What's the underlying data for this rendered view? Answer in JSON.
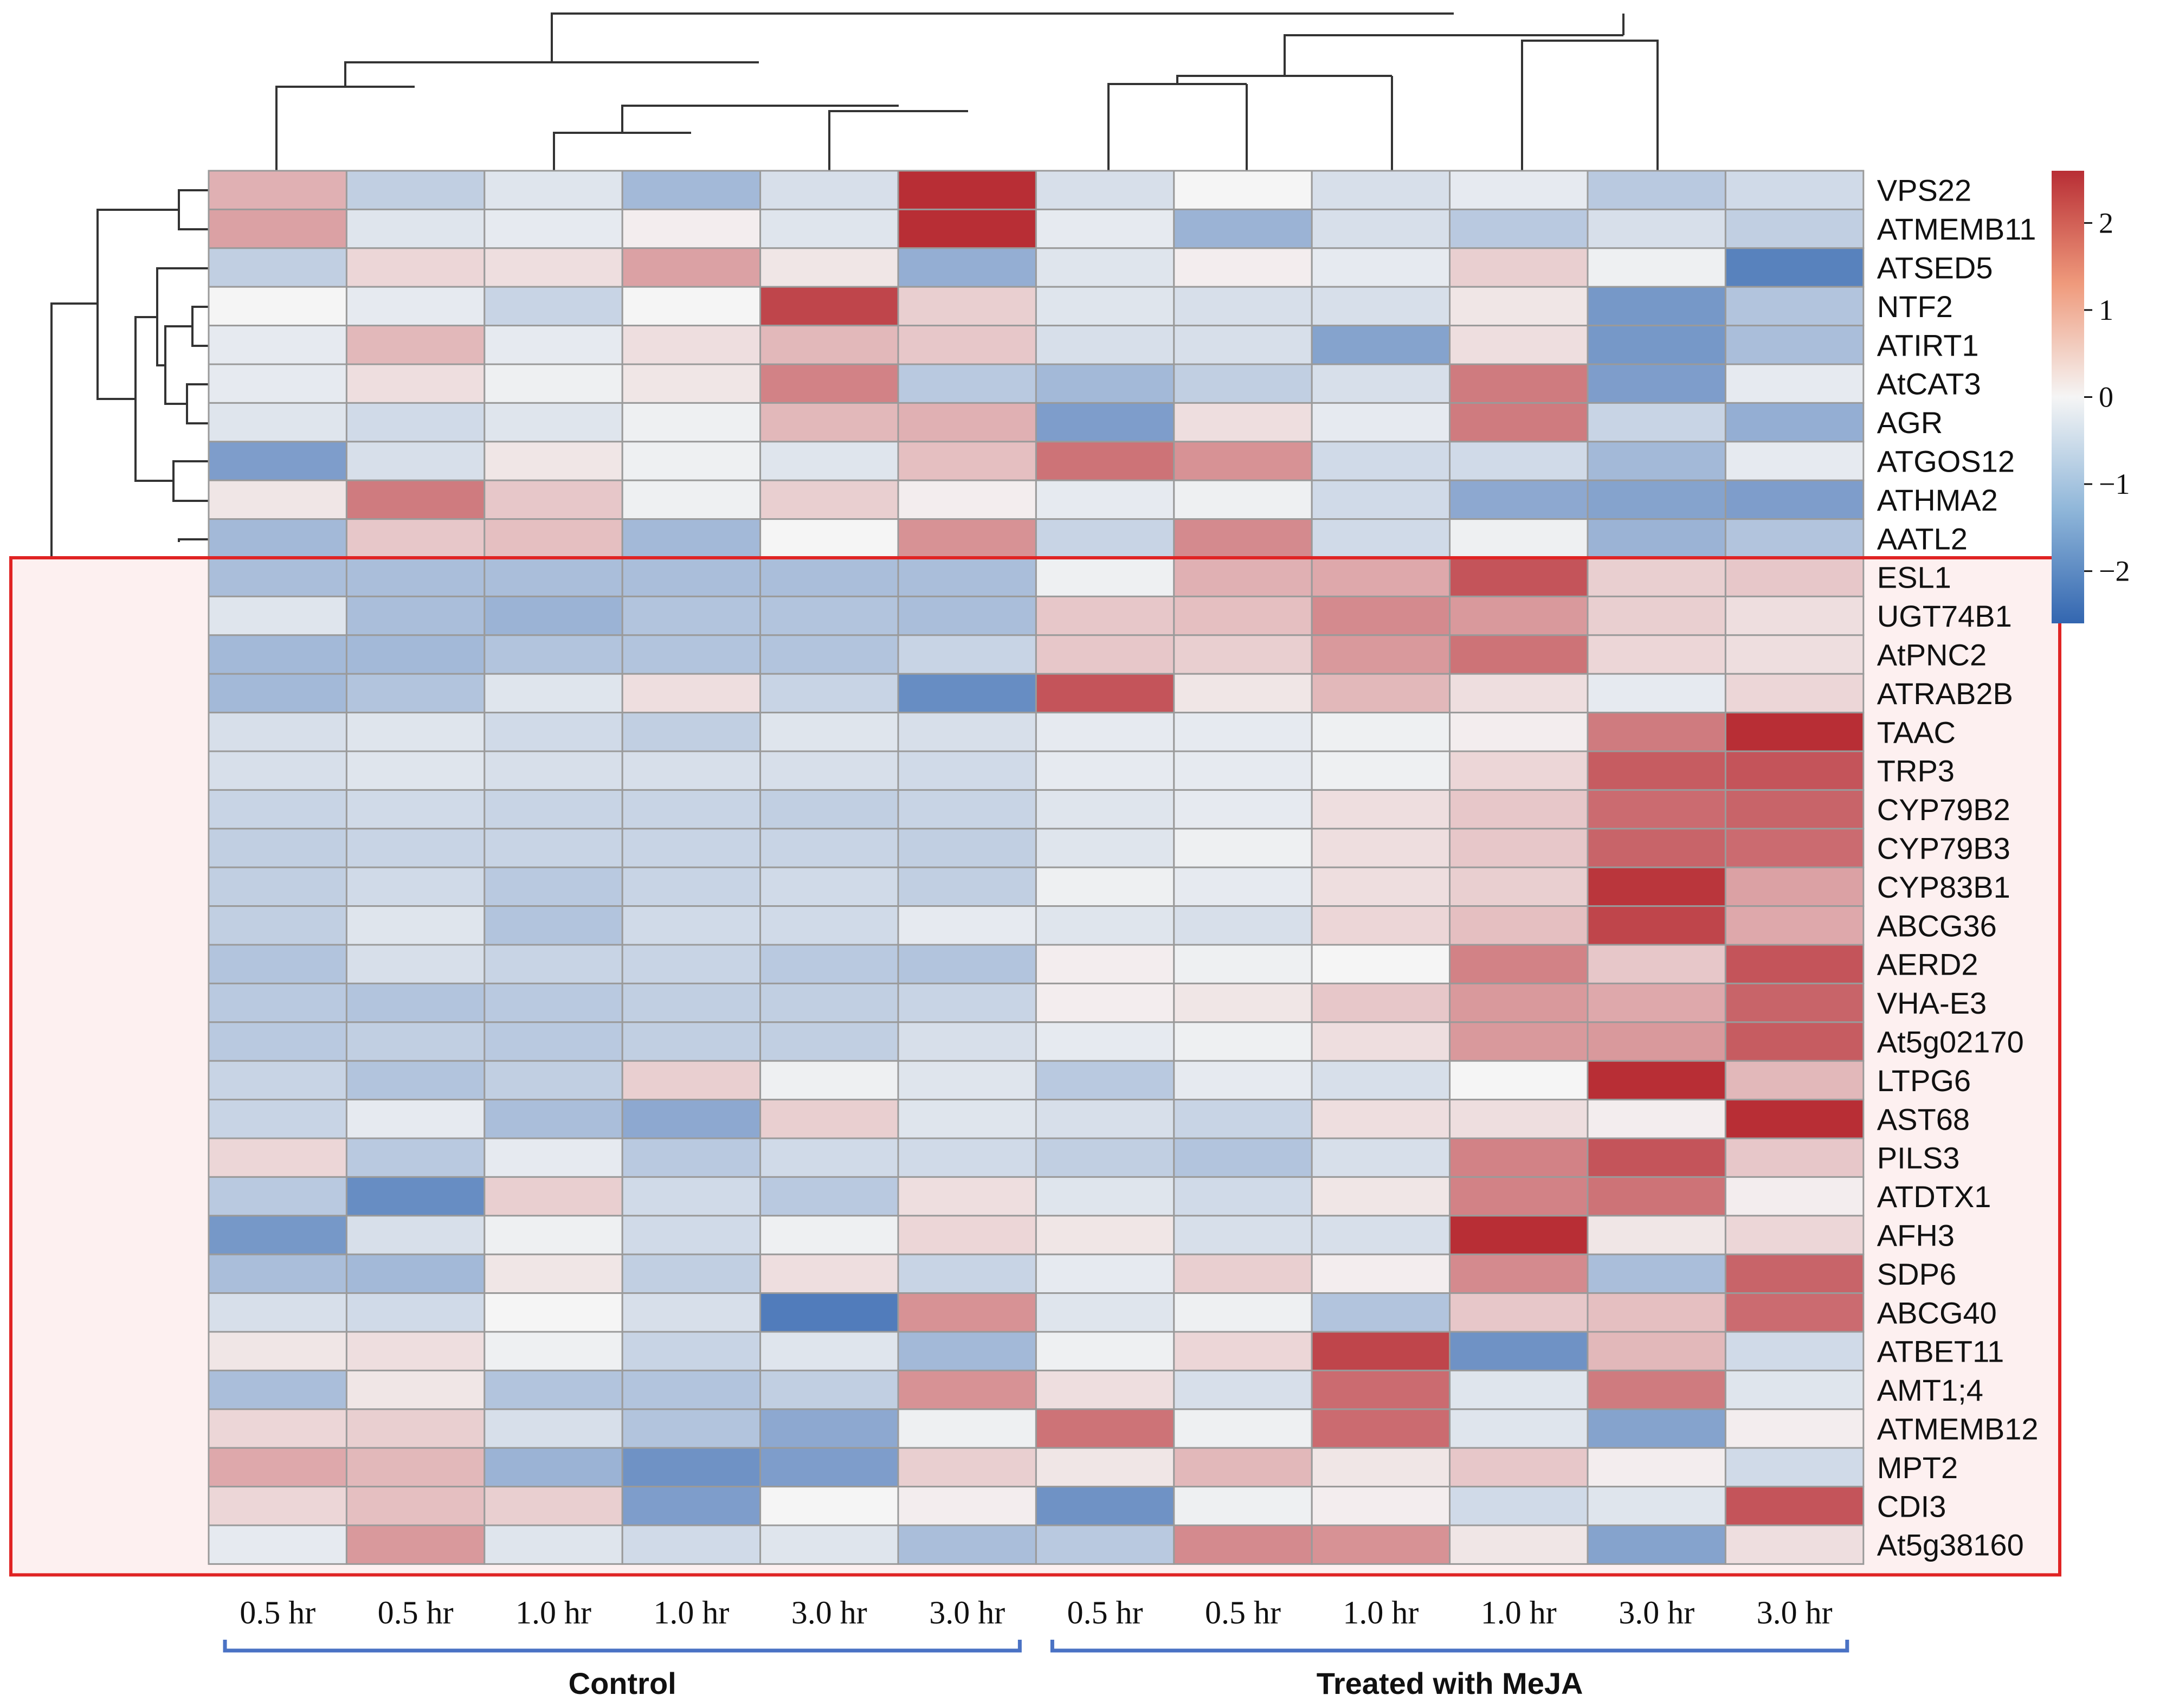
{
  "chart_data": {
    "type": "heatmap",
    "title": "",
    "columns": [
      "0.5 hr",
      "0.5 hr",
      "1.0 hr",
      "1.0 hr",
      "3.0 hr",
      "3.0 hr",
      "0.5 hr",
      "0.5 hr",
      "1.0 hr",
      "1.0 hr",
      "3.0 hr",
      "3.0 hr"
    ],
    "groups": [
      {
        "label": "Control",
        "column_span": [
          0,
          5
        ]
      },
      {
        "label": "Treated with MeJA",
        "column_span": [
          6,
          11
        ]
      }
    ],
    "rows": [
      "VPS22",
      "ATMEMB11",
      "ATSED5",
      "NTF2",
      "ATIRT1",
      "AtCAT3",
      "AGR",
      "ATGOS12",
      "ATHMA2",
      "AATL2",
      "ESL1",
      "UGT74B1",
      "AtPNC2",
      "ATRAB2B",
      "TAAC",
      "TRP3",
      "CYP79B2",
      "CYP79B3",
      "CYP83B1",
      "ABCG36",
      "AERD2",
      "VHA-E3",
      "At5g02170",
      "LTPG6",
      "AST68",
      "PILS3",
      "ATDTX1",
      "AFH3",
      "SDP6",
      "ABCG40",
      "ATBET11",
      "AMT1;4",
      "ATMEMB12",
      "MPT2",
      "CDI3",
      "At5g38160"
    ],
    "values": [
      [
        0.9,
        -0.7,
        -0.3,
        -1.1,
        -0.4,
        2.6,
        -0.4,
        0.0,
        -0.4,
        -0.2,
        -0.8,
        -0.5
      ],
      [
        1.1,
        -0.3,
        -0.2,
        0.1,
        -0.3,
        2.6,
        -0.2,
        -1.2,
        -0.4,
        -0.8,
        -0.4,
        -0.7
      ],
      [
        -0.7,
        0.4,
        0.3,
        1.1,
        0.2,
        -1.3,
        -0.3,
        0.1,
        -0.2,
        0.5,
        -0.1,
        -2.1
      ],
      [
        0.0,
        -0.2,
        -0.6,
        0.0,
        2.3,
        0.5,
        -0.3,
        -0.4,
        -0.4,
        0.2,
        -1.7,
        -0.9
      ],
      [
        -0.2,
        0.8,
        -0.2,
        0.3,
        0.8,
        0.6,
        -0.4,
        -0.4,
        -1.5,
        0.3,
        -1.7,
        -1.0
      ],
      [
        -0.2,
        0.3,
        -0.1,
        0.2,
        1.5,
        -0.8,
        -1.1,
        -0.7,
        -0.4,
        1.6,
        -1.6,
        -0.2
      ],
      [
        -0.3,
        -0.5,
        -0.3,
        -0.1,
        0.8,
        0.9,
        -1.6,
        0.3,
        -0.2,
        1.6,
        -0.6,
        -1.3
      ],
      [
        -1.6,
        -0.4,
        0.2,
        -0.1,
        -0.3,
        0.7,
        1.7,
        1.3,
        -0.5,
        -0.5,
        -1.1,
        -0.2
      ],
      [
        0.2,
        1.6,
        0.6,
        -0.1,
        0.5,
        0.1,
        -0.2,
        -0.1,
        -0.5,
        -1.4,
        -1.5,
        -1.6
      ],
      [
        -1.1,
        0.6,
        0.7,
        -1.1,
        0.0,
        1.3,
        -0.6,
        1.4,
        -0.5,
        -0.1,
        -1.2,
        -0.9
      ],
      [
        -1.0,
        -1.0,
        -1.0,
        -1.0,
        -1.0,
        -1.0,
        -0.1,
        0.9,
        1.0,
        2.1,
        0.5,
        0.6
      ],
      [
        -0.3,
        -1.0,
        -1.2,
        -0.9,
        -0.9,
        -1.0,
        0.6,
        0.7,
        1.4,
        1.2,
        0.5,
        0.3
      ],
      [
        -1.1,
        -1.1,
        -0.9,
        -0.9,
        -0.9,
        -0.6,
        0.6,
        0.5,
        1.2,
        1.7,
        0.4,
        0.3
      ],
      [
        -1.1,
        -0.9,
        -0.3,
        0.3,
        -0.6,
        -1.9,
        2.1,
        0.2,
        0.8,
        0.3,
        -0.2,
        0.4
      ],
      [
        -0.4,
        -0.3,
        -0.5,
        -0.7,
        -0.3,
        -0.4,
        -0.2,
        -0.2,
        -0.1,
        0.1,
        1.6,
        2.6
      ],
      [
        -0.4,
        -0.3,
        -0.4,
        -0.4,
        -0.4,
        -0.5,
        -0.2,
        -0.2,
        -0.1,
        0.4,
        2.0,
        2.1
      ],
      [
        -0.6,
        -0.5,
        -0.6,
        -0.6,
        -0.7,
        -0.6,
        -0.3,
        -0.2,
        0.3,
        0.6,
        1.8,
        1.9
      ],
      [
        -0.7,
        -0.6,
        -0.6,
        -0.6,
        -0.6,
        -0.7,
        -0.3,
        -0.1,
        0.3,
        0.6,
        1.9,
        1.8
      ],
      [
        -0.7,
        -0.5,
        -0.8,
        -0.6,
        -0.5,
        -0.7,
        -0.1,
        -0.2,
        0.3,
        0.5,
        2.5,
        1.1
      ],
      [
        -0.7,
        -0.3,
        -0.9,
        -0.5,
        -0.5,
        -0.2,
        -0.3,
        -0.4,
        0.4,
        0.7,
        2.3,
        1.0
      ],
      [
        -0.9,
        -0.4,
        -0.6,
        -0.6,
        -0.8,
        -0.9,
        0.1,
        -0.1,
        0.0,
        1.5,
        0.6,
        2.1
      ],
      [
        -0.8,
        -0.9,
        -0.8,
        -0.7,
        -0.7,
        -0.6,
        0.1,
        0.2,
        0.6,
        1.2,
        1.0,
        1.9
      ],
      [
        -0.8,
        -0.7,
        -0.8,
        -0.7,
        -0.7,
        -0.4,
        -0.2,
        -0.1,
        0.3,
        1.2,
        1.2,
        2.0
      ],
      [
        -0.6,
        -0.9,
        -0.7,
        0.5,
        -0.1,
        -0.3,
        -0.8,
        -0.2,
        -0.4,
        0.0,
        2.7,
        0.8
      ],
      [
        -0.6,
        -0.2,
        -1.0,
        -1.4,
        0.5,
        -0.3,
        -0.4,
        -0.6,
        0.3,
        0.3,
        0.1,
        2.7
      ],
      [
        0.4,
        -0.8,
        -0.2,
        -0.8,
        -0.5,
        -0.5,
        -0.7,
        -0.9,
        -0.4,
        1.5,
        2.1,
        0.6
      ],
      [
        -0.8,
        -1.9,
        0.5,
        -0.5,
        -0.8,
        0.3,
        -0.3,
        -0.5,
        0.2,
        1.5,
        1.7,
        0.1
      ],
      [
        -1.7,
        -0.4,
        -0.1,
        -0.5,
        -0.1,
        0.4,
        0.2,
        -0.4,
        -0.4,
        2.6,
        0.2,
        0.4
      ],
      [
        -1.0,
        -1.1,
        0.2,
        -0.7,
        0.3,
        -0.6,
        -0.2,
        0.5,
        0.1,
        1.4,
        -1.0,
        1.9
      ],
      [
        -0.4,
        -0.5,
        0.0,
        -0.4,
        -2.2,
        1.3,
        -0.3,
        -0.1,
        -0.9,
        0.6,
        0.7,
        1.8
      ],
      [
        0.2,
        0.3,
        -0.1,
        -0.6,
        -0.3,
        -1.1,
        -0.1,
        0.4,
        2.3,
        -1.8,
        0.8,
        -0.5
      ],
      [
        -1.0,
        0.2,
        -0.9,
        -0.9,
        -0.7,
        1.3,
        0.3,
        -0.4,
        1.8,
        -0.3,
        1.6,
        -0.3
      ],
      [
        0.4,
        0.5,
        -0.4,
        -0.9,
        -1.4,
        -0.1,
        1.7,
        -0.1,
        1.8,
        -0.3,
        -1.5,
        0.1
      ],
      [
        1.0,
        0.8,
        -1.2,
        -1.8,
        -1.6,
        0.5,
        0.2,
        0.8,
        0.2,
        0.6,
        0.1,
        -0.5
      ],
      [
        0.4,
        0.7,
        0.5,
        -1.6,
        0.0,
        0.1,
        -1.8,
        -0.1,
        0.1,
        -0.5,
        -0.3,
        2.1
      ],
      [
        -0.2,
        1.2,
        -0.3,
        -0.5,
        -0.3,
        -1.0,
        -0.8,
        1.4,
        1.3,
        0.2,
        -1.5,
        0.3
      ]
    ],
    "highlight": {
      "row_span": [
        10,
        35
      ],
      "color": "#e02424"
    },
    "colorbar": {
      "range": [
        -2.6,
        2.6
      ],
      "ticks": [
        2,
        1,
        0,
        -1,
        -2
      ],
      "tick_labels": [
        "2",
        "1",
        "0",
        "−1",
        "−2"
      ]
    },
    "colors": {
      "low": "#3366b0",
      "mid": "#f5f5f5",
      "high": "#b82e35",
      "grid": "#9a9a9a",
      "bracket": "#4a72c4"
    }
  }
}
